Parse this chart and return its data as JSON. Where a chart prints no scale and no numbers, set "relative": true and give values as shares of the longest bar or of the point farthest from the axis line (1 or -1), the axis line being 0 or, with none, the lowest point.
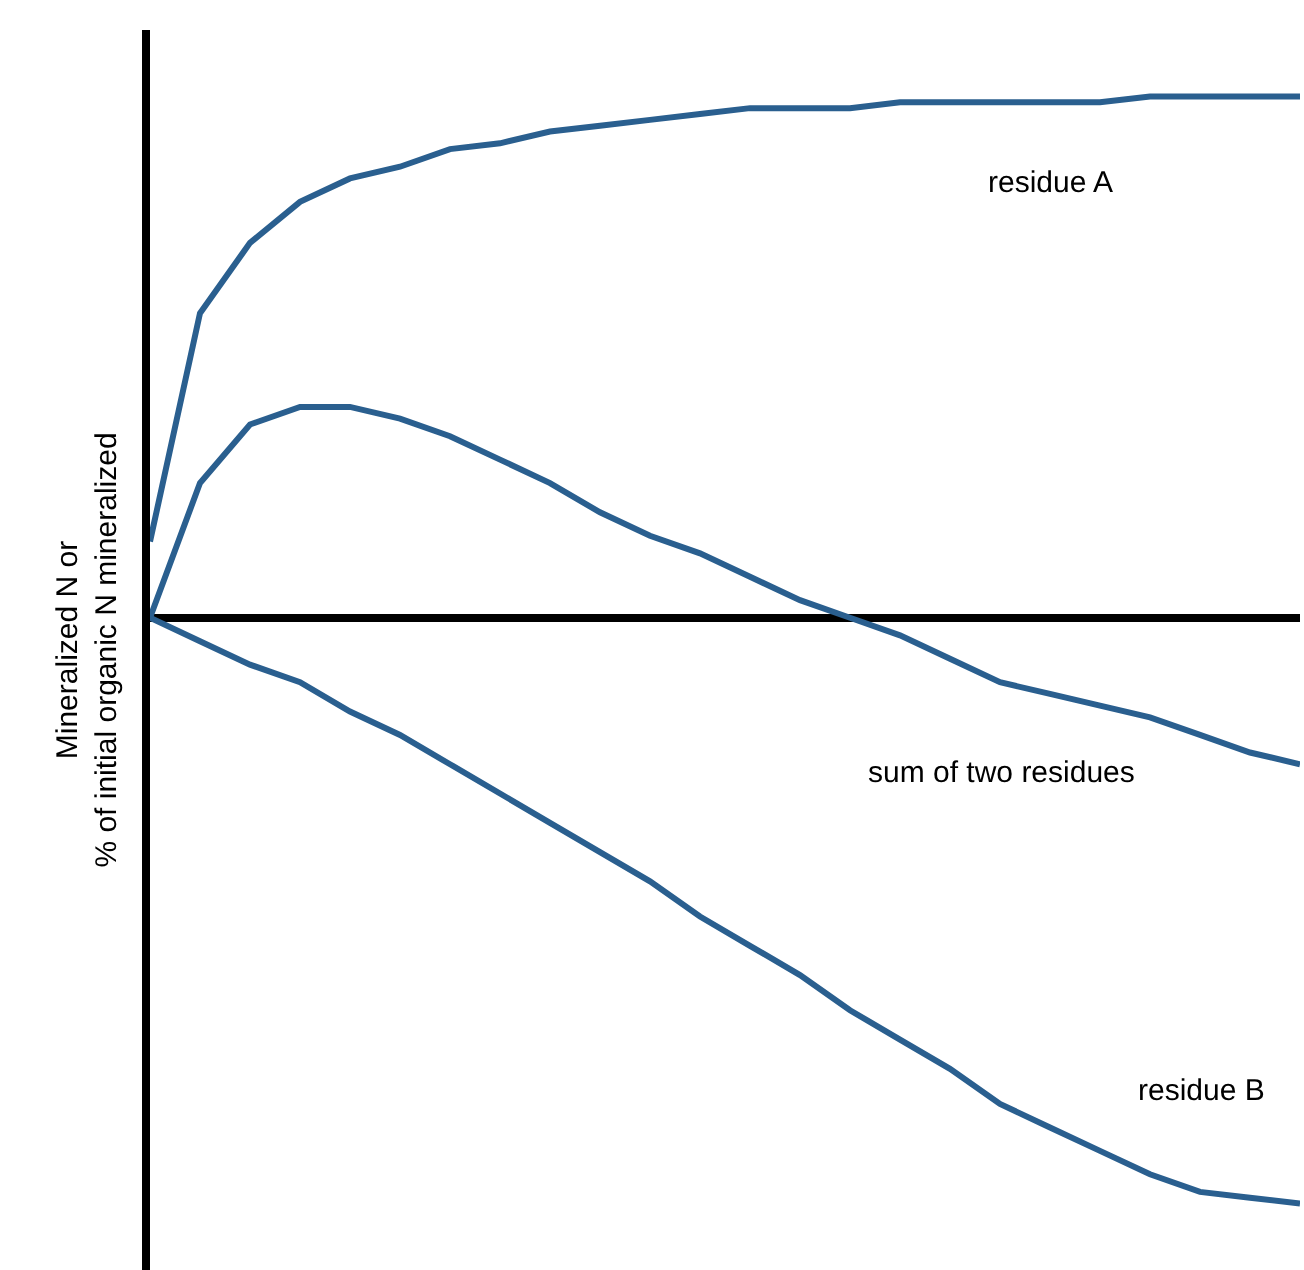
{
  "chart_data": {
    "type": "line",
    "relative": true,
    "ylabel": "Mineralized N or\n% of initial organic N mineralized",
    "categories": [
      null,
      null,
      null,
      null,
      null,
      null,
      null,
      null,
      null,
      null,
      null,
      null,
      null,
      null,
      null,
      null,
      null,
      null,
      null,
      null,
      null,
      null,
      null,
      null
    ],
    "legend": false,
    "grid": false,
    "marker": "none",
    "line_style": "solid",
    "tick_labels": false,
    "series": [
      {
        "name": "residue A",
        "color": "#2a5f8f",
        "values": [
          0.13,
          0.52,
          0.64,
          0.71,
          0.75,
          0.77,
          0.8,
          0.81,
          0.83,
          0.84,
          0.85,
          0.86,
          0.87,
          0.87,
          0.87,
          0.88,
          0.88,
          0.88,
          0.88,
          0.88,
          0.89,
          0.89,
          0.89,
          0.89
        ]
      },
      {
        "name": "sum of two residues",
        "color": "#2a5f8f",
        "values": [
          0,
          0.23,
          0.33,
          0.36,
          0.36,
          0.34,
          0.31,
          0.27,
          0.23,
          0.18,
          0.14,
          0.11,
          0.07,
          0.03,
          0,
          -0.03,
          -0.07,
          -0.11,
          -0.13,
          -0.15,
          -0.17,
          -0.2,
          -0.23,
          -0.25
        ]
      },
      {
        "name": "residue B",
        "color": "#2a5f8f",
        "values": [
          0,
          -0.04,
          -0.08,
          -0.11,
          -0.16,
          -0.2,
          -0.25,
          -0.3,
          -0.35,
          -0.4,
          -0.45,
          -0.51,
          -0.56,
          -0.61,
          -0.67,
          -0.72,
          -0.77,
          -0.83,
          -0.87,
          -0.91,
          -0.95,
          -0.98,
          -0.99,
          -1.0
        ]
      }
    ]
  }
}
